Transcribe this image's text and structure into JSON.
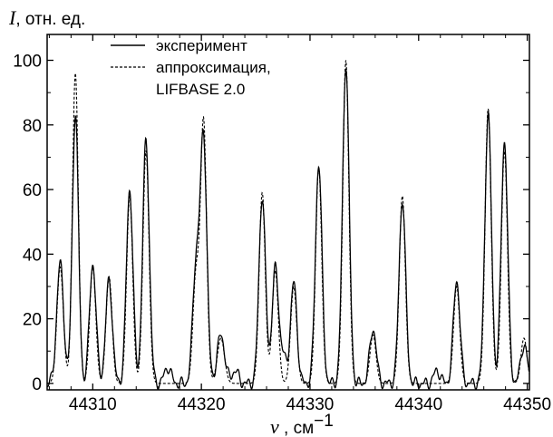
{
  "chart_data": {
    "type": "line",
    "title": "",
    "y_axis": {
      "symbol": "I",
      "label": ", отн. ед.",
      "ticks": [
        0,
        20,
        40,
        60,
        80,
        100
      ],
      "ylim": [
        -2,
        108
      ]
    },
    "x_axis": {
      "symbol": "ν",
      "label": " , см",
      "unit_exponent": "−1",
      "ticks": [
        44310,
        44320,
        44330,
        44340,
        44350
      ],
      "xlim": [
        44305.8,
        44350.2
      ]
    },
    "grid": false,
    "legend": {
      "placement": "top-left",
      "entries": [
        "эксперимент",
        "аппроксимация,",
        "LIFBASE 2.0"
      ]
    },
    "series": [
      {
        "name": "эксперимент",
        "style": "solid",
        "peaks": [
          {
            "x": 44307.0,
            "y": 37,
            "w": 0.32
          },
          {
            "x": 44308.4,
            "y": 84,
            "w": 0.28
          },
          {
            "x": 44310.0,
            "y": 37,
            "w": 0.3
          },
          {
            "x": 44311.5,
            "y": 32,
            "w": 0.3
          },
          {
            "x": 44313.4,
            "y": 60,
            "w": 0.3
          },
          {
            "x": 44314.9,
            "y": 75,
            "w": 0.3
          },
          {
            "x": 44316.9,
            "y": 5,
            "w": 0.3
          },
          {
            "x": 44319.5,
            "y": 36,
            "w": 0.3
          },
          {
            "x": 44320.2,
            "y": 76,
            "w": 0.3
          },
          {
            "x": 44321.8,
            "y": 15,
            "w": 0.35
          },
          {
            "x": 44323.1,
            "y": 4,
            "w": 0.3
          },
          {
            "x": 44325.6,
            "y": 58,
            "w": 0.3
          },
          {
            "x": 44326.8,
            "y": 35,
            "w": 0.3
          },
          {
            "x": 44327.5,
            "y": 8,
            "w": 0.3
          },
          {
            "x": 44328.5,
            "y": 31,
            "w": 0.3
          },
          {
            "x": 44330.8,
            "y": 68,
            "w": 0.3
          },
          {
            "x": 44333.3,
            "y": 99,
            "w": 0.3
          },
          {
            "x": 44335.8,
            "y": 17,
            "w": 0.3
          },
          {
            "x": 44338.5,
            "y": 57,
            "w": 0.3
          },
          {
            "x": 44341.7,
            "y": 4,
            "w": 0.3
          },
          {
            "x": 44343.5,
            "y": 32,
            "w": 0.3
          },
          {
            "x": 44346.4,
            "y": 83,
            "w": 0.3
          },
          {
            "x": 44347.9,
            "y": 75,
            "w": 0.3
          },
          {
            "x": 44349.7,
            "y": 12,
            "w": 0.3
          }
        ]
      },
      {
        "name": "аппроксимация, LIFBASE 2.0",
        "style": "dashed",
        "peaks": [
          {
            "x": 44307.0,
            "y": 36,
            "w": 0.3
          },
          {
            "x": 44308.4,
            "y": 96,
            "w": 0.27
          },
          {
            "x": 44310.0,
            "y": 36,
            "w": 0.28
          },
          {
            "x": 44311.5,
            "y": 33,
            "w": 0.28
          },
          {
            "x": 44313.4,
            "y": 58,
            "w": 0.28
          },
          {
            "x": 44314.9,
            "y": 72,
            "w": 0.28
          },
          {
            "x": 44319.5,
            "y": 33,
            "w": 0.28
          },
          {
            "x": 44320.2,
            "y": 81,
            "w": 0.28
          },
          {
            "x": 44321.8,
            "y": 14,
            "w": 0.33
          },
          {
            "x": 44325.6,
            "y": 59,
            "w": 0.28
          },
          {
            "x": 44326.8,
            "y": 35,
            "w": 0.28
          },
          {
            "x": 44328.5,
            "y": 30,
            "w": 0.28
          },
          {
            "x": 44330.8,
            "y": 67,
            "w": 0.28
          },
          {
            "x": 44333.3,
            "y": 100,
            "w": 0.28
          },
          {
            "x": 44335.8,
            "y": 15,
            "w": 0.28
          },
          {
            "x": 44338.5,
            "y": 58,
            "w": 0.28
          },
          {
            "x": 44343.5,
            "y": 30,
            "w": 0.28
          },
          {
            "x": 44346.4,
            "y": 85,
            "w": 0.28
          },
          {
            "x": 44347.9,
            "y": 72,
            "w": 0.28
          },
          {
            "x": 44349.7,
            "y": 14,
            "w": 0.28
          }
        ]
      }
    ]
  }
}
